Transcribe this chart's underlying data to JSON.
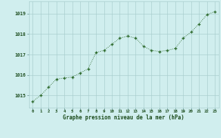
{
  "hours": [
    0,
    1,
    2,
    3,
    4,
    5,
    6,
    7,
    8,
    9,
    10,
    11,
    12,
    13,
    14,
    15,
    16,
    17,
    18,
    19,
    20,
    21,
    22,
    23
  ],
  "pressure": [
    1014.7,
    1015.0,
    1015.4,
    1015.8,
    1015.85,
    1015.9,
    1016.1,
    1016.3,
    1017.1,
    1017.2,
    1017.5,
    1017.8,
    1017.9,
    1017.8,
    1017.4,
    1017.2,
    1017.15,
    1017.2,
    1017.3,
    1017.8,
    1018.1,
    1018.5,
    1018.95,
    1019.1
  ],
  "line_color": "#2d6a2d",
  "marker_color": "#2d6a2d",
  "bg_color": "#d0eeee",
  "grid_color": "#a8cece",
  "xlabel": "Graphe pression niveau de la mer (hPa)",
  "xlabel_color": "#1a4a1a",
  "tick_label_color": "#1a4a1a",
  "ylim_min": 1014.4,
  "ylim_max": 1019.6,
  "yticks": [
    1015,
    1016,
    1017,
    1018,
    1019
  ],
  "fig_width": 3.2,
  "fig_height": 2.0,
  "dpi": 100
}
